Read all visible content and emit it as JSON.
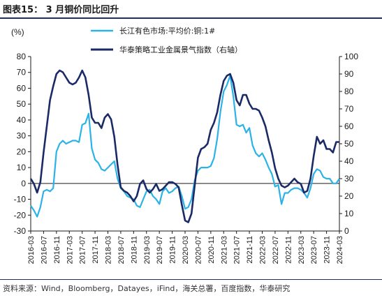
{
  "header": {
    "title": "图表15： 3 月铜价同比回升"
  },
  "footer": {
    "source": "资料来源：Wind，Bloomberg，Datayes，iFind，海关总署，百度指数，华泰研究"
  },
  "chart_data": {
    "type": "line",
    "ylabel_left": "(%)",
    "ylim_left": [
      -30,
      80
    ],
    "yticks_left": [
      -30,
      -20,
      -10,
      0,
      10,
      20,
      30,
      40,
      50,
      60,
      70,
      80
    ],
    "ylim_right": [
      0,
      100
    ],
    "yticks_right": [
      0,
      10,
      20,
      30,
      40,
      50,
      60,
      70,
      80,
      90,
      100
    ],
    "x_range": [
      "2016-03",
      "2024-03"
    ],
    "xticks": [
      "2016-03",
      "2016-07",
      "2016-11",
      "2017-03",
      "2017-07",
      "2017-11",
      "2018-03",
      "2018-07",
      "2018-11",
      "2019-03",
      "2019-07",
      "2019-11",
      "2020-03",
      "2020-07",
      "2020-11",
      "2021-03",
      "2021-07",
      "2021-11",
      "2022-03",
      "2022-07",
      "2022-11",
      "2023-03",
      "2023-07",
      "2023-11",
      "2024-03"
    ],
    "legend_position": "top-right",
    "series": [
      {
        "name": "长江有色市场:平均价:铜:1#",
        "axis": "left",
        "color": "#2bb3e8",
        "points": [
          [
            "2016-03",
            -14
          ],
          [
            "2016-04",
            -17
          ],
          [
            "2016-05",
            -21
          ],
          [
            "2016-06",
            -15
          ],
          [
            "2016-07",
            -5
          ],
          [
            "2016-08",
            -4
          ],
          [
            "2016-09",
            -5
          ],
          [
            "2016-10",
            -3
          ],
          [
            "2016-11",
            20
          ],
          [
            "2016-12",
            25
          ],
          [
            "2017-01",
            27
          ],
          [
            "2017-02",
            25
          ],
          [
            "2017-03",
            26
          ],
          [
            "2017-04",
            27
          ],
          [
            "2017-05",
            27
          ],
          [
            "2017-06",
            26
          ],
          [
            "2017-07",
            37
          ],
          [
            "2017-08",
            38
          ],
          [
            "2017-09",
            44
          ],
          [
            "2017-10",
            22
          ],
          [
            "2017-11",
            15
          ],
          [
            "2017-12",
            13
          ],
          [
            "2018-01",
            9
          ],
          [
            "2018-02",
            8
          ],
          [
            "2018-03",
            10
          ],
          [
            "2018-04",
            12
          ],
          [
            "2018-05",
            14
          ],
          [
            "2018-06",
            3
          ],
          [
            "2018-07",
            -3
          ],
          [
            "2018-08",
            -5
          ],
          [
            "2018-09",
            -8
          ],
          [
            "2018-10",
            -9
          ],
          [
            "2018-11",
            -10
          ],
          [
            "2018-12",
            -14
          ],
          [
            "2019-01",
            -15
          ],
          [
            "2019-02",
            -10
          ],
          [
            "2019-03",
            -5
          ],
          [
            "2019-04",
            -4
          ],
          [
            "2019-05",
            -8
          ],
          [
            "2019-06",
            -10
          ],
          [
            "2019-07",
            -13
          ],
          [
            "2019-08",
            -5
          ],
          [
            "2019-09",
            -3
          ],
          [
            "2019-10",
            -6
          ],
          [
            "2019-11",
            -5
          ],
          [
            "2019-12",
            -3
          ],
          [
            "2020-01",
            -2
          ],
          [
            "2020-02",
            -8
          ],
          [
            "2020-03",
            -16
          ],
          [
            "2020-04",
            -15
          ],
          [
            "2020-05",
            -10
          ],
          [
            "2020-06",
            2
          ],
          [
            "2020-07",
            8
          ],
          [
            "2020-08",
            10
          ],
          [
            "2020-09",
            10
          ],
          [
            "2020-10",
            10
          ],
          [
            "2020-11",
            11
          ],
          [
            "2020-12",
            16
          ],
          [
            "2021-01",
            28
          ],
          [
            "2021-02",
            45
          ],
          [
            "2021-03",
            58
          ],
          [
            "2021-04",
            62
          ],
          [
            "2021-05",
            68
          ],
          [
            "2021-06",
            55
          ],
          [
            "2021-07",
            37
          ],
          [
            "2021-08",
            36
          ],
          [
            "2021-09",
            37
          ],
          [
            "2021-10",
            32
          ],
          [
            "2021-11",
            35
          ],
          [
            "2021-12",
            24
          ],
          [
            "2022-01",
            19
          ],
          [
            "2022-02",
            17
          ],
          [
            "2022-03",
            19
          ],
          [
            "2022-04",
            15
          ],
          [
            "2022-05",
            10
          ],
          [
            "2022-06",
            6
          ],
          [
            "2022-07",
            -2
          ],
          [
            "2022-08",
            -1
          ],
          [
            "2022-09",
            -13
          ],
          [
            "2022-10",
            -6
          ],
          [
            "2022-11",
            -6
          ],
          [
            "2022-12",
            -4
          ],
          [
            "2023-01",
            -3
          ],
          [
            "2023-02",
            -3
          ],
          [
            "2023-03",
            -4
          ],
          [
            "2023-04",
            -6
          ],
          [
            "2023-05",
            -9
          ],
          [
            "2023-06",
            -3
          ],
          [
            "2023-07",
            6
          ],
          [
            "2023-08",
            9
          ],
          [
            "2023-09",
            8
          ],
          [
            "2023-10",
            4
          ],
          [
            "2023-11",
            3
          ],
          [
            "2023-12",
            3
          ],
          [
            "2024-01",
            0
          ],
          [
            "2024-02",
            0
          ],
          [
            "2024-03",
            3
          ]
        ]
      },
      {
        "name": "华泰策略工业金属景气指数（右轴）",
        "axis": "right",
        "color": "#1a2a66",
        "points": [
          [
            "2016-03",
            30
          ],
          [
            "2016-04",
            27
          ],
          [
            "2016-05",
            22
          ],
          [
            "2016-06",
            28
          ],
          [
            "2016-07",
            45
          ],
          [
            "2016-08",
            60
          ],
          [
            "2016-09",
            75
          ],
          [
            "2016-10",
            83
          ],
          [
            "2016-11",
            90
          ],
          [
            "2016-12",
            92
          ],
          [
            "2017-01",
            91
          ],
          [
            "2017-02",
            88
          ],
          [
            "2017-03",
            85
          ],
          [
            "2017-04",
            84
          ],
          [
            "2017-05",
            85
          ],
          [
            "2017-06",
            88
          ],
          [
            "2017-07",
            92
          ],
          [
            "2017-08",
            88
          ],
          [
            "2017-09",
            78
          ],
          [
            "2017-10",
            65
          ],
          [
            "2017-11",
            62
          ],
          [
            "2017-12",
            62
          ],
          [
            "2018-01",
            59
          ],
          [
            "2018-02",
            65
          ],
          [
            "2018-03",
            67
          ],
          [
            "2018-04",
            64
          ],
          [
            "2018-05",
            54
          ],
          [
            "2018-06",
            38
          ],
          [
            "2018-07",
            25
          ],
          [
            "2018-08",
            23
          ],
          [
            "2018-09",
            22
          ],
          [
            "2018-10",
            20
          ],
          [
            "2018-11",
            17
          ],
          [
            "2018-12",
            20
          ],
          [
            "2019-01",
            27
          ],
          [
            "2019-02",
            29
          ],
          [
            "2019-03",
            24
          ],
          [
            "2019-04",
            22
          ],
          [
            "2019-05",
            24
          ],
          [
            "2019-06",
            27
          ],
          [
            "2019-07",
            23
          ],
          [
            "2019-08",
            24
          ],
          [
            "2019-09",
            26
          ],
          [
            "2019-10",
            28
          ],
          [
            "2019-11",
            28
          ],
          [
            "2019-12",
            27
          ],
          [
            "2020-01",
            25
          ],
          [
            "2020-02",
            15
          ],
          [
            "2020-03",
            6
          ],
          [
            "2020-04",
            5
          ],
          [
            "2020-05",
            10
          ],
          [
            "2020-06",
            26
          ],
          [
            "2020-07",
            42
          ],
          [
            "2020-08",
            47
          ],
          [
            "2020-09",
            48
          ],
          [
            "2020-10",
            50
          ],
          [
            "2020-11",
            58
          ],
          [
            "2020-12",
            62
          ],
          [
            "2021-01",
            68
          ],
          [
            "2021-02",
            78
          ],
          [
            "2021-03",
            86
          ],
          [
            "2021-04",
            89
          ],
          [
            "2021-05",
            90
          ],
          [
            "2021-06",
            85
          ],
          [
            "2021-07",
            75
          ],
          [
            "2021-08",
            72
          ],
          [
            "2021-09",
            78
          ],
          [
            "2021-10",
            78
          ],
          [
            "2021-11",
            73
          ],
          [
            "2021-12",
            70
          ],
          [
            "2022-01",
            70
          ],
          [
            "2022-02",
            69
          ],
          [
            "2022-03",
            65
          ],
          [
            "2022-04",
            60
          ],
          [
            "2022-05",
            52
          ],
          [
            "2022-06",
            45
          ],
          [
            "2022-07",
            36
          ],
          [
            "2022-08",
            30
          ],
          [
            "2022-09",
            26
          ],
          [
            "2022-10",
            25
          ],
          [
            "2022-11",
            26
          ],
          [
            "2022-12",
            28
          ],
          [
            "2023-01",
            30
          ],
          [
            "2023-02",
            28
          ],
          [
            "2023-03",
            27
          ],
          [
            "2023-04",
            22
          ],
          [
            "2023-05",
            23
          ],
          [
            "2023-06",
            30
          ],
          [
            "2023-07",
            43
          ],
          [
            "2023-08",
            54
          ],
          [
            "2023-09",
            50
          ],
          [
            "2023-10",
            52
          ],
          [
            "2023-11",
            47
          ],
          [
            "2023-12",
            47
          ],
          [
            "2024-01",
            45
          ],
          [
            "2024-02",
            51
          ],
          [
            "2024-03",
            51
          ]
        ]
      }
    ]
  }
}
